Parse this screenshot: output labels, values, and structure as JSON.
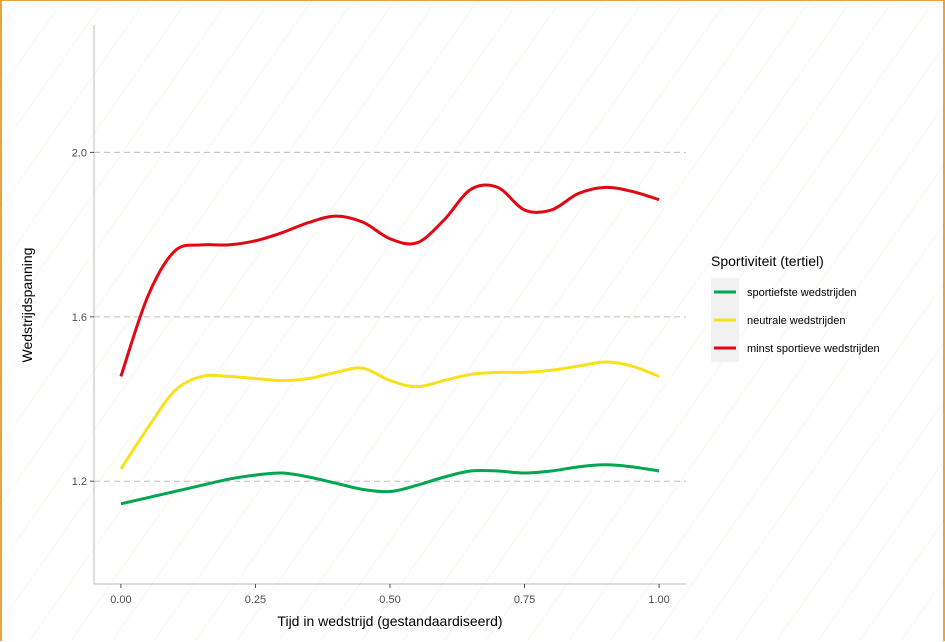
{
  "chart_data": {
    "type": "line",
    "title": "",
    "xlabel": "Tijd in wedstrijd (gestandaardiseerd)",
    "ylabel": "Wedstrijdspanning",
    "xlim": [
      -0.05,
      1.05
    ],
    "ylim": [
      0.95,
      2.31
    ],
    "x_ticks": [
      0.0,
      0.25,
      0.5,
      0.75,
      1.0
    ],
    "x_tick_labels": [
      "0.00",
      "0.25",
      "0.50",
      "0.75",
      "1.00"
    ],
    "y_ticks": [
      1.2,
      1.6,
      2.0
    ],
    "y_tick_labels": [
      "1.2",
      "1.6",
      "2.0"
    ],
    "grid": "horizontal dashed",
    "legend": {
      "title": "Sportiviteit (tertiel)",
      "placement": "right"
    },
    "x": [
      0.0,
      0.05,
      0.1,
      0.15,
      0.2,
      0.25,
      0.3,
      0.35,
      0.4,
      0.45,
      0.5,
      0.55,
      0.6,
      0.65,
      0.7,
      0.75,
      0.8,
      0.85,
      0.9,
      0.95,
      1.0
    ],
    "series": [
      {
        "name": "sportiefste wedstrijden",
        "color": "#00a651",
        "values": [
          1.145,
          1.16,
          1.175,
          1.19,
          1.205,
          1.215,
          1.22,
          1.21,
          1.195,
          1.18,
          1.175,
          1.19,
          1.21,
          1.225,
          1.225,
          1.22,
          1.225,
          1.235,
          1.24,
          1.235,
          1.225
        ]
      },
      {
        "name": "neutrale wedstrijden",
        "color": "#f8e11c",
        "values": [
          1.23,
          1.33,
          1.42,
          1.455,
          1.455,
          1.45,
          1.445,
          1.45,
          1.465,
          1.475,
          1.445,
          1.43,
          1.445,
          1.46,
          1.465,
          1.465,
          1.47,
          1.48,
          1.49,
          1.48,
          1.455
        ]
      },
      {
        "name": "minst sportieve wedstrijden",
        "color": "#e30613",
        "values": [
          1.455,
          1.65,
          1.76,
          1.775,
          1.775,
          1.785,
          1.805,
          1.83,
          1.845,
          1.83,
          1.79,
          1.78,
          1.835,
          1.91,
          1.915,
          1.86,
          1.86,
          1.9,
          1.915,
          1.905,
          1.885
        ]
      }
    ]
  }
}
